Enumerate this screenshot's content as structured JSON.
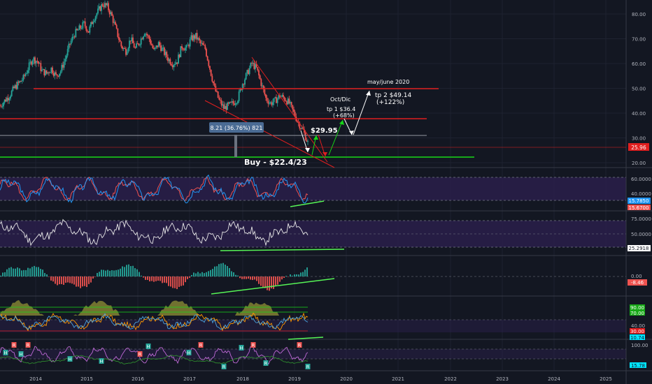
{
  "colors": {
    "background": "#131722",
    "grid": "#1e2230",
    "up": "#26a69a",
    "down": "#ef5350",
    "red_line": "#e01f1f",
    "green_line": "#17d817",
    "bright_green": "#56f456",
    "purple_band": "#2a1f4a",
    "axis_text": "#b2b5be"
  },
  "axis": {
    "years": [
      "2014",
      "2015",
      "2016",
      "2017",
      "2018",
      "2019",
      "2020",
      "2021",
      "2022",
      "2023",
      "2024",
      "2025"
    ],
    "price_ticks": [
      "80.00",
      "70.00",
      "60.00",
      "50.00",
      "40.00",
      "30.00",
      "20.00"
    ]
  },
  "price_tag": "25.96",
  "annotations": {
    "range_box": "8.21 (36.76%) 821",
    "buy": "Buy - $22.4/23",
    "price_2995": "$29.95",
    "oct_dic": "Oct/Dic",
    "tp1_line1": "tp 1 $36.4",
    "tp1_line2": "(+68%)",
    "may_june": "may/june 2020",
    "tp2_line1": "tp 2 $49.14",
    "tp2_line2": "(+122%)"
  },
  "panels": {
    "p1": {
      "ticks": [
        "60.0000",
        "40.0000"
      ],
      "tag": "15.7850",
      "tag2": "15.6700"
    },
    "p2": {
      "ticks": [
        "75.0000",
        "50.0000"
      ],
      "tag": "25.2918"
    },
    "p3": {
      "ticks": [
        "0.00"
      ],
      "tag": "-8.46"
    },
    "p4": {
      "ticks": [
        "90.00",
        "70.00",
        "40.00",
        "30.00",
        "20.00"
      ],
      "tag_green": "70.00",
      "tag_red": "30.00",
      "tag_cyan": "10.74"
    },
    "p5": {
      "ticks": [
        "100.00"
      ],
      "tag": "15.78"
    }
  },
  "chart_data": {
    "type": "candlestick",
    "title": "",
    "xlabel": "",
    "ylabel": "",
    "ylim": [
      17,
      87
    ],
    "series": [
      {
        "x": [
          "2013-09",
          "2013-10",
          "2013-11",
          "2013-12",
          "2014-01",
          "2014-02",
          "2014-03",
          "2014-04",
          "2014-05",
          "2014-06",
          "2014-07",
          "2014-08",
          "2014-09",
          "2014-10",
          "2014-11",
          "2014-12",
          "2015-01",
          "2015-02",
          "2015-03",
          "2015-04",
          "2015-05",
          "2015-06",
          "2015-07",
          "2015-08",
          "2015-09",
          "2015-10",
          "2015-11",
          "2015-12",
          "2016-01",
          "2016-02",
          "2016-03",
          "2016-04",
          "2016-05",
          "2016-06",
          "2016-07",
          "2016-08",
          "2016-09",
          "2016-10",
          "2016-11",
          "2016-12",
          "2017-01",
          "2017-02",
          "2017-03",
          "2017-04",
          "2017-05",
          "2017-06",
          "2017-07",
          "2017-08",
          "2017-09",
          "2017-10",
          "2017-11",
          "2017-12",
          "2018-01",
          "2018-02",
          "2018-03",
          "2018-04",
          "2018-05",
          "2018-06",
          "2018-07",
          "2018-08",
          "2018-09",
          "2018-10",
          "2018-11",
          "2018-12",
          "2019-01",
          "2019-02",
          "2019-03"
        ],
        "close": [
          43,
          45,
          47,
          50,
          52,
          54,
          58,
          62,
          61,
          57,
          56,
          58,
          55,
          57,
          62,
          68,
          72,
          74,
          76,
          73,
          78,
          81,
          84,
          83,
          79,
          73,
          67,
          65,
          70,
          66,
          69,
          73,
          70,
          65,
          68,
          65,
          62,
          60,
          61,
          67,
          66,
          70,
          71,
          68,
          66,
          58,
          50,
          45,
          42,
          43,
          44,
          46,
          52,
          56,
          60,
          58,
          52,
          46,
          44,
          45,
          47,
          46,
          44,
          40,
          36,
          33,
          28
        ]
      }
    ],
    "levels": [
      {
        "name": "resistance",
        "value": 50
      },
      {
        "name": "resistance",
        "value": 37.5
      },
      {
        "name": "gray",
        "value": 30.5
      },
      {
        "name": "price",
        "value": 25.96
      },
      {
        "name": "buy-support",
        "value": 22.4
      }
    ]
  }
}
